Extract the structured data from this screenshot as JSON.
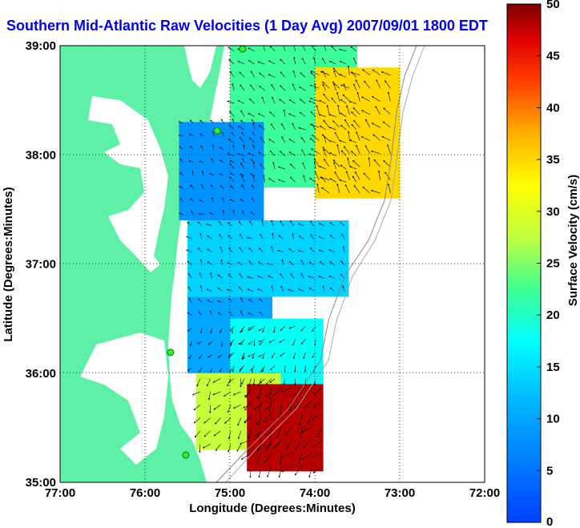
{
  "title": "Southern Mid-Atlantic Raw Velocities (1 Day Avg) 2007/09/01 1800 EDT",
  "map": {
    "x_axis_label": "Longitude (Degrees:Minutes)",
    "y_axis_label": "Latitude (Degrees:Minutes)",
    "x_ticks": [
      "77:00",
      "76:00",
      "75:00",
      "74:00",
      "73:00",
      "72:00"
    ],
    "y_ticks": [
      "39:00",
      "38:00",
      "37:00",
      "36:00",
      "35:00"
    ],
    "lon_range": [
      -77,
      -72
    ],
    "lat_range": [
      35,
      39
    ],
    "grid": "dotted",
    "land_color": "#5ff0a8",
    "water_color": "#ffffff"
  },
  "colorbar": {
    "label": "Surface Velocity (cm/s)",
    "ticks": [
      "50",
      "45",
      "40",
      "35",
      "30",
      "25",
      "20",
      "15",
      "10",
      "5",
      "0"
    ],
    "min": 0,
    "max": 50,
    "colormap": "jet"
  },
  "stations": [
    {
      "lon": -74.85,
      "lat": 38.97
    },
    {
      "lon": -75.15,
      "lat": 38.22
    },
    {
      "lon": -75.7,
      "lat": 36.19
    },
    {
      "lon": -75.52,
      "lat": 35.25
    }
  ],
  "velocity_regions": [
    {
      "lon_min": -75.0,
      "lon_max": -73.5,
      "lat_min": 37.7,
      "lat_max": 39.0,
      "speed": 22
    },
    {
      "lon_min": -74.0,
      "lon_max": -73.0,
      "lat_min": 37.6,
      "lat_max": 38.8,
      "speed": 35
    },
    {
      "lon_min": -75.6,
      "lon_max": -74.6,
      "lat_min": 37.4,
      "lat_max": 38.3,
      "speed": 8
    },
    {
      "lon_min": -75.5,
      "lon_max": -73.6,
      "lat_min": 36.7,
      "lat_max": 37.4,
      "speed": 14
    },
    {
      "lon_min": -75.5,
      "lon_max": -74.5,
      "lat_min": 36.0,
      "lat_max": 36.7,
      "speed": 10
    },
    {
      "lon_min": -75.0,
      "lon_max": -73.9,
      "lat_min": 35.9,
      "lat_max": 36.5,
      "speed": 18
    },
    {
      "lon_min": -75.4,
      "lon_max": -74.4,
      "lat_min": 35.3,
      "lat_max": 36.0,
      "speed": 28
    },
    {
      "lon_min": -74.8,
      "lon_max": -73.9,
      "lat_min": 35.1,
      "lat_max": 35.9,
      "speed": 48
    }
  ]
}
